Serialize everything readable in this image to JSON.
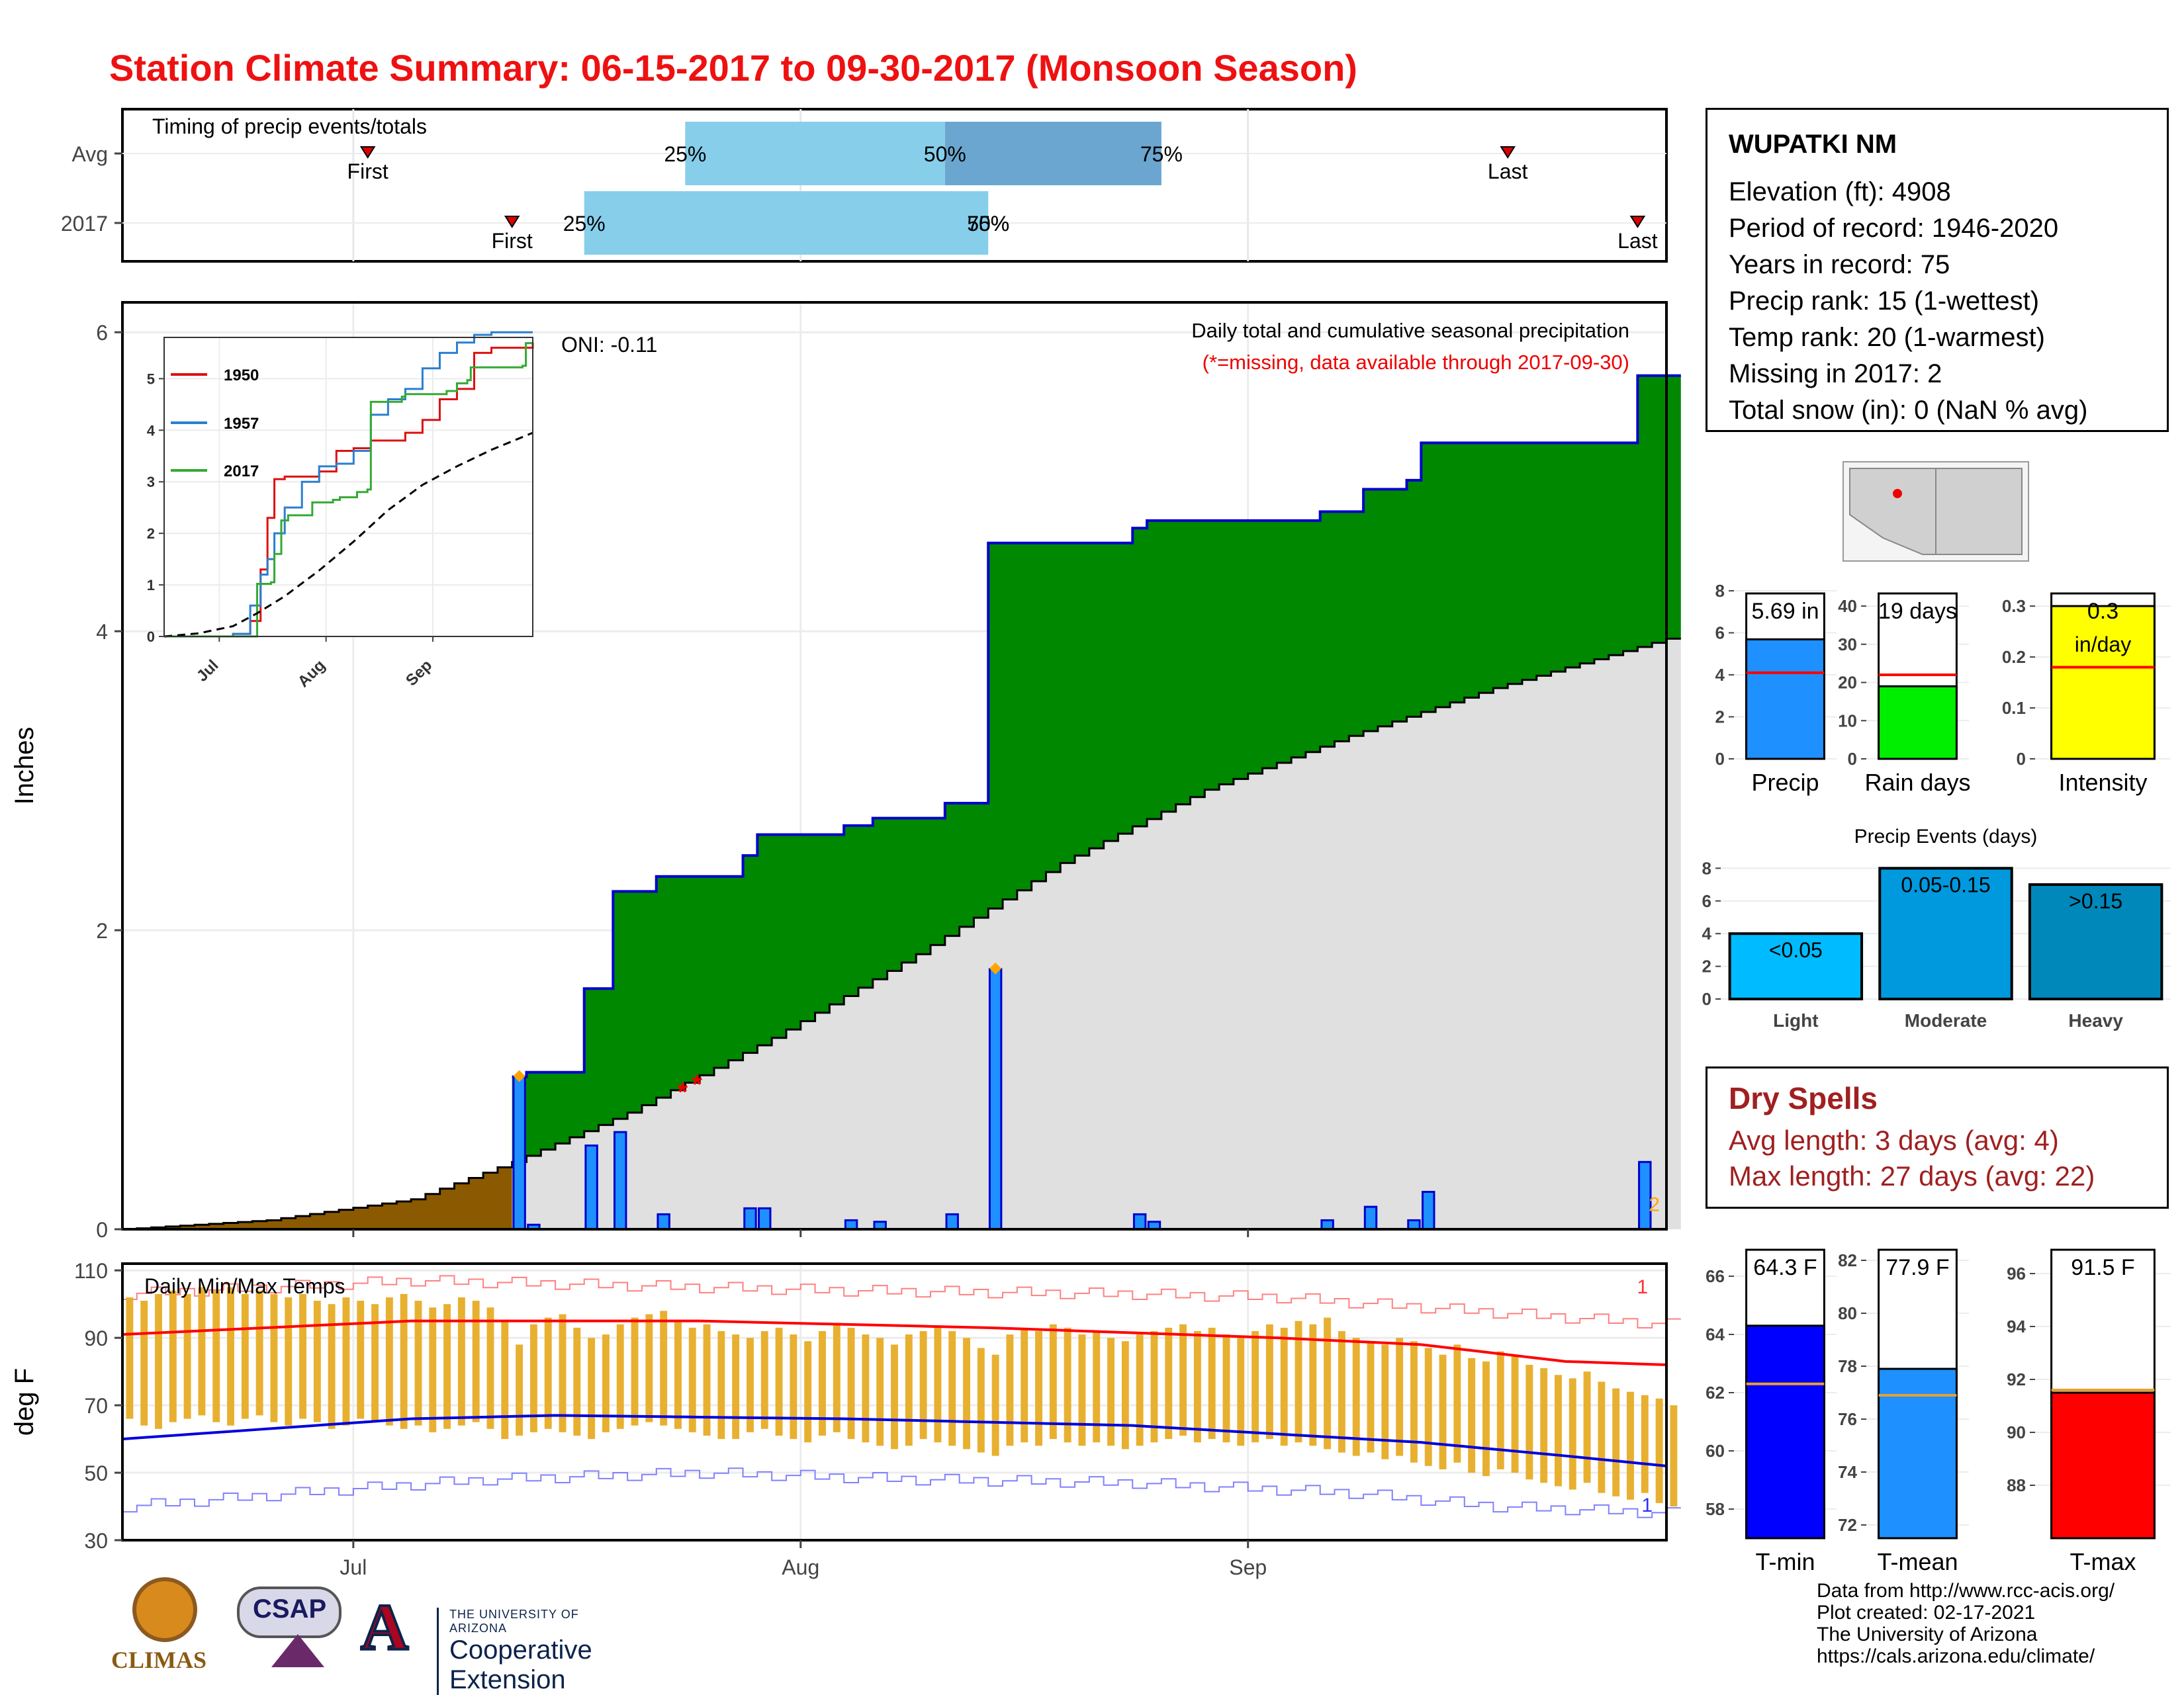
{
  "title": "Station Climate Summary: 06-15-2017 to 09-30-2017 (Monsoon Season)",
  "colors": {
    "title": "#ee1111",
    "cumulative_2017": "#008800",
    "cumulative_before_season": "#8b5a00",
    "avg_cumulative": "#e0e0e0",
    "daily_precip": "#1e90ff",
    "temp_bar": "#e8b030",
    "tmax_line": "#ff0000",
    "tmin_line": "#0000dd",
    "rain_days": "#00ee00",
    "intensity": "#ffff00",
    "light": "#00bbff",
    "moderate": "#0099dd",
    "heavy": "#0088bb",
    "tmin_bar": "#0000ff",
    "tmean_bar": "#1e90ff",
    "tmax_bar": "#ff0000",
    "dry_spells": "#a02020"
  },
  "station_info": {
    "name": "WUPATKI NM",
    "lines": [
      "Elevation (ft): 4908",
      "Period of record: 1946-2020",
      "Years in record: 75",
      "Precip rank: 15 (1-wettest)",
      "Temp rank: 20 (1-warmest)",
      "Missing in 2017: 2",
      "Total snow (in): 0 (NaN % avg)"
    ]
  },
  "dry_spells": {
    "title": "Dry Spells",
    "avg_length": "Avg length: 3 days (avg: 4)",
    "max_length": "Max length: 27 days (avg: 22)"
  },
  "credits": [
    "Data from http://www.rcc-acis.org/",
    "Plot created: 02-17-2021",
    "The University of Arizona",
    "https://cals.arizona.edu/climate/"
  ],
  "logos": {
    "climas": "CLIMAS",
    "csap": "CSAP",
    "ua_letter": "A",
    "ce_small": "THE UNIVERSITY OF ARIZONA",
    "ce_big": "Cooperative Extension"
  },
  "chart_data": [
    {
      "type": "bar",
      "panel": "timing",
      "title": "Timing of precip events/totals",
      "x_domain_days_from_jun15": [
        0,
        107
      ],
      "rows": [
        {
          "label": "Avg",
          "first_day": 17,
          "last_day": 96,
          "p25_day": 39,
          "p50_day": 57,
          "p75_day": 72,
          "first_label": "First",
          "last_label": "Last",
          "p25_label": "25%",
          "p50_label": "50%",
          "p75_label": "75%"
        },
        {
          "label": "2017",
          "first_day": 27,
          "last_day": 105,
          "p25_day": 32,
          "p50_day": 60,
          "p75_day": 60,
          "first_label": "First",
          "last_label": "Last",
          "p25_label": "25%",
          "p50_label": "50%",
          "p75_label": "75%"
        }
      ]
    },
    {
      "type": "area",
      "panel": "precip",
      "title": "Daily total and cumulative seasonal precipitation",
      "subtitle": "(*=missing, data available through 2017-09-30)",
      "annotation": "ONI: -0.11",
      "ylabel": "Inches",
      "ylim": [
        0,
        6.2
      ],
      "yticks": [
        0,
        2,
        4,
        6
      ],
      "xtick_labels": [
        "Jul",
        "Aug",
        "Sep"
      ],
      "xtick_days": [
        16,
        47,
        78
      ],
      "x_domain_days_from_jun15": [
        0,
        107
      ],
      "missing_days": [
        38,
        39
      ],
      "avg_cumulative": {
        "days": [
          0,
          10,
          20,
          27,
          35,
          45,
          55,
          65,
          75,
          85,
          95,
          107
        ],
        "values": [
          0.0,
          0.06,
          0.2,
          0.45,
          0.78,
          1.28,
          1.84,
          2.45,
          2.94,
          3.3,
          3.62,
          3.95
        ]
      },
      "daily_precip": [
        {
          "day": 27,
          "value": 1.02
        },
        {
          "day": 28,
          "value": 0.03
        },
        {
          "day": 32,
          "value": 0.56
        },
        {
          "day": 34,
          "value": 0.65
        },
        {
          "day": 37,
          "value": 0.1
        },
        {
          "day": 43,
          "value": 0.14
        },
        {
          "day": 44,
          "value": 0.14
        },
        {
          "day": 50,
          "value": 0.06
        },
        {
          "day": 52,
          "value": 0.05
        },
        {
          "day": 57,
          "value": 0.1
        },
        {
          "day": 60,
          "value": 1.74
        },
        {
          "day": 70,
          "value": 0.1
        },
        {
          "day": 71,
          "value": 0.05
        },
        {
          "day": 83,
          "value": 0.06
        },
        {
          "day": 86,
          "value": 0.15
        },
        {
          "day": 89,
          "value": 0.06
        },
        {
          "day": 90,
          "value": 0.25
        },
        {
          "day": 105,
          "value": 0.45
        }
      ],
      "markers": [
        {
          "day": 27,
          "label": "◆"
        },
        {
          "day": 60,
          "label": "◆"
        },
        {
          "day": 105,
          "label": "2"
        }
      ],
      "inset": {
        "type": "line",
        "xtick_labels": [
          "Jul",
          "Aug",
          "Sep"
        ],
        "yticks": [
          0,
          1,
          2,
          3,
          4,
          5
        ],
        "ylim": [
          0,
          5.8
        ],
        "series": [
          {
            "name": "1950",
            "color": "#dd1111",
            "days": [
              0,
              20,
              25,
              28,
              30,
              32,
              35,
              40,
              45,
              50,
              55,
              60,
              65,
              70,
              75,
              80,
              85,
              90,
              95,
              100,
              107
            ],
            "values": [
              0.0,
              0.05,
              0.3,
              1.3,
              2.3,
              3.05,
              3.1,
              3.1,
              3.2,
              3.6,
              3.65,
              3.8,
              3.8,
              3.95,
              4.2,
              4.6,
              4.8,
              5.5,
              5.6,
              5.6,
              5.7
            ]
          },
          {
            "name": "1957",
            "color": "#2a7fd0",
            "days": [
              0,
              20,
              25,
              28,
              30,
              32,
              35,
              40,
              45,
              50,
              55,
              60,
              65,
              70,
              75,
              80,
              85,
              90,
              95,
              100,
              107
            ],
            "values": [
              0.0,
              0.05,
              0.6,
              1.2,
              1.5,
              2.0,
              2.5,
              3.0,
              3.3,
              3.35,
              3.6,
              4.3,
              4.6,
              4.8,
              5.2,
              5.5,
              5.7,
              5.85,
              5.9,
              5.9,
              5.9
            ]
          },
          {
            "name": "2017",
            "color": "#33aa33",
            "days": [
              0,
              26,
              27,
              31,
              32,
              34,
              36,
              42,
              43,
              49,
              51,
              56,
              59,
              60,
              69,
              70,
              82,
              85,
              88,
              89,
              104,
              105,
              107
            ],
            "values": [
              0.0,
              0.0,
              1.02,
              1.05,
              1.6,
              2.25,
              2.35,
              2.35,
              2.6,
              2.65,
              2.7,
              2.8,
              2.85,
              4.55,
              4.65,
              4.7,
              4.76,
              4.91,
              4.97,
              5.22,
              5.25,
              5.69,
              5.69
            ]
          },
          {
            "name": "avg",
            "color": "#000000",
            "days": [
              0,
              10,
              20,
              27,
              35,
              45,
              55,
              65,
              75,
              85,
              95,
              107
            ],
            "values": [
              0.0,
              0.06,
              0.2,
              0.45,
              0.78,
              1.28,
              1.84,
              2.45,
              2.94,
              3.3,
              3.62,
              3.95
            ]
          }
        ]
      }
    },
    {
      "type": "bar",
      "panel": "temperature",
      "title": "Daily Min/Max Temps",
      "ylabel": "deg F",
      "ylim": [
        30,
        112
      ],
      "yticks": [
        30,
        50,
        70,
        90,
        110
      ],
      "xtick_labels": [
        "Jul",
        "Aug",
        "Sep"
      ],
      "xtick_days": [
        16,
        47,
        78
      ],
      "x_domain_days_from_jun15": [
        0,
        107
      ],
      "corner_label_top": "1",
      "corner_label_bottom": "1",
      "avg_tmax": {
        "days": [
          0,
          20,
          40,
          60,
          80,
          90,
          100,
          107
        ],
        "values": [
          91,
          95,
          95,
          93,
          90,
          88,
          83,
          82
        ]
      },
      "avg_tmin": {
        "days": [
          0,
          20,
          30,
          50,
          70,
          90,
          100,
          107
        ],
        "values": [
          60,
          66,
          67,
          66,
          64,
          59,
          55,
          52
        ]
      },
      "record_high": {
        "days": [
          0,
          20,
          30,
          50,
          70,
          80,
          90,
          100,
          107
        ],
        "values": [
          103,
          107,
          106,
          104,
          103,
          102,
          99,
          96,
          94
        ]
      },
      "record_low": {
        "days": [
          0,
          15,
          25,
          40,
          55,
          70,
          85,
          95,
          107
        ],
        "values": [
          40,
          45,
          48,
          50,
          48,
          47,
          44,
          40,
          38
        ]
      },
      "daily_temps": {
        "tmax": [
          102,
          101,
          103,
          104,
          103,
          105,
          104,
          105,
          103,
          104,
          103,
          102,
          103,
          101,
          100,
          102,
          101,
          100,
          102,
          103,
          101,
          99,
          100,
          102,
          101,
          99,
          95,
          88,
          94,
          96,
          97,
          93,
          90,
          91,
          94,
          96,
          97,
          98,
          95,
          93,
          94,
          92,
          91,
          90,
          92,
          93,
          91,
          89,
          92,
          94,
          93,
          91,
          90,
          88,
          91,
          92,
          93,
          92,
          90,
          87,
          85,
          91,
          93,
          92,
          94,
          93,
          91,
          92,
          90,
          89,
          91,
          92,
          93,
          94,
          92,
          93,
          91,
          90,
          92,
          94,
          93,
          95,
          94,
          96,
          92,
          90,
          89,
          88,
          90,
          89,
          87,
          85,
          88,
          84,
          83,
          86,
          85,
          82,
          81,
          79,
          78,
          80,
          77,
          75,
          74,
          73,
          72,
          70
        ],
        "tmin": [
          66,
          64,
          63,
          65,
          66,
          67,
          65,
          64,
          66,
          67,
          65,
          64,
          66,
          65,
          63,
          64,
          66,
          65,
          64,
          63,
          64,
          62,
          63,
          64,
          65,
          63,
          60,
          61,
          62,
          63,
          62,
          61,
          60,
          62,
          63,
          64,
          65,
          64,
          63,
          62,
          61,
          60,
          60,
          62,
          63,
          61,
          60,
          59,
          61,
          62,
          60,
          59,
          58,
          57,
          58,
          60,
          59,
          58,
          57,
          56,
          55,
          58,
          59,
          58,
          60,
          59,
          58,
          59,
          58,
          57,
          58,
          59,
          60,
          61,
          59,
          60,
          59,
          58,
          59,
          60,
          58,
          59,
          58,
          57,
          56,
          55,
          56,
          54,
          55,
          53,
          52,
          51,
          53,
          50,
          49,
          51,
          50,
          48,
          47,
          46,
          45,
          47,
          44,
          43,
          42,
          44,
          41,
          40
        ]
      }
    },
    {
      "type": "bar",
      "panel": "precip_summary",
      "subplots": [
        {
          "label": "Precip",
          "value": 5.69,
          "avg": 4.1,
          "ylim": [
            0,
            8
          ],
          "yticks": [
            0,
            2,
            4,
            6,
            8
          ],
          "value_label": "5.69 in",
          "color": "#1e90ff"
        },
        {
          "label": "Rain days",
          "value": 19,
          "avg": 22,
          "ylim": [
            0,
            44
          ],
          "yticks": [
            0,
            10,
            20,
            30,
            40
          ],
          "value_label": "19 days",
          "color": "#00ee00"
        },
        {
          "label": "Intensity",
          "value": 0.3,
          "avg": 0.18,
          "ylim": [
            0,
            0.33
          ],
          "yticks": [
            0.0,
            0.1,
            0.2,
            0.3
          ],
          "value_label": "0.3",
          "value_label2": "in/day",
          "color": "#ffff00"
        }
      ]
    },
    {
      "type": "bar",
      "panel": "precip_events",
      "title": "Precip Events (days)",
      "categories": [
        "Light",
        "Moderate",
        "Heavy"
      ],
      "values": [
        4,
        8,
        7
      ],
      "bar_labels": [
        "<0.05",
        "0.05-0.15",
        ">0.15"
      ],
      "ylim": [
        0,
        8.5
      ],
      "yticks": [
        0,
        2,
        4,
        6,
        8
      ]
    },
    {
      "type": "bar",
      "panel": "temp_summary",
      "subplots": [
        {
          "label": "T-min",
          "value": 64.3,
          "avg": 62.3,
          "ylim": [
            57,
            67
          ],
          "yticks": [
            58,
            60,
            62,
            64,
            66
          ],
          "value_label": "64.3 F",
          "color": "#0000ff"
        },
        {
          "label": "T-mean",
          "value": 77.9,
          "avg": 76.9,
          "ylim": [
            71.5,
            82.5
          ],
          "yticks": [
            72,
            74,
            76,
            78,
            80,
            82
          ],
          "value_label": "77.9 F",
          "color": "#1e90ff"
        },
        {
          "label": "T-max",
          "value": 91.5,
          "avg": 91.6,
          "ylim": [
            86,
            97
          ],
          "yticks": [
            88,
            90,
            92,
            94,
            96
          ],
          "value_label": "91.5 F",
          "color": "#ff0000"
        }
      ]
    }
  ]
}
